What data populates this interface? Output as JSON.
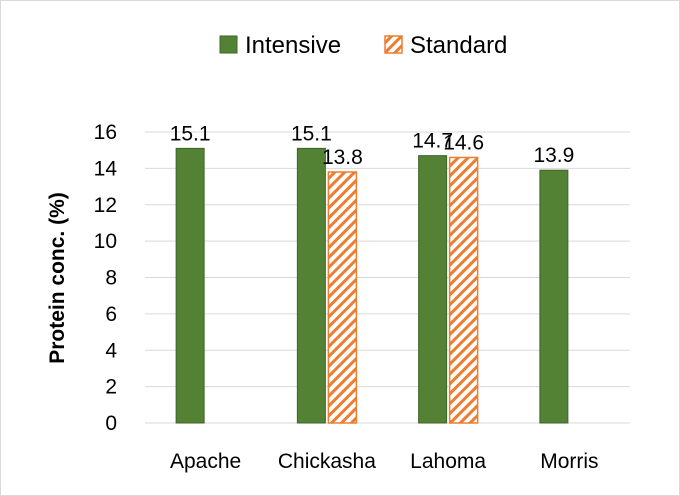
{
  "chart_data": {
    "type": "bar",
    "title": "",
    "xlabel": "",
    "ylabel": "Protein conc. (%)",
    "ylim": [
      0,
      16
    ],
    "yticks": [
      0,
      2,
      4,
      6,
      8,
      10,
      12,
      14,
      16
    ],
    "grid": true,
    "legend_position": "top",
    "categories": [
      "Apache",
      "Chickasha",
      "Lahoma",
      "Morris"
    ],
    "series": [
      {
        "name": "Intensive",
        "values": [
          15.1,
          15.1,
          14.7,
          13.9
        ],
        "labels": [
          "15.1",
          "15.1",
          "14.7",
          "13.9"
        ],
        "color": "#548235",
        "pattern": "solid"
      },
      {
        "name": "Standard",
        "values": [
          null,
          13.8,
          14.6,
          null
        ],
        "labels": [
          "",
          "13.8",
          "14.6",
          ""
        ],
        "color": "#ED7D31",
        "pattern": "diagonal-stripes"
      }
    ]
  }
}
